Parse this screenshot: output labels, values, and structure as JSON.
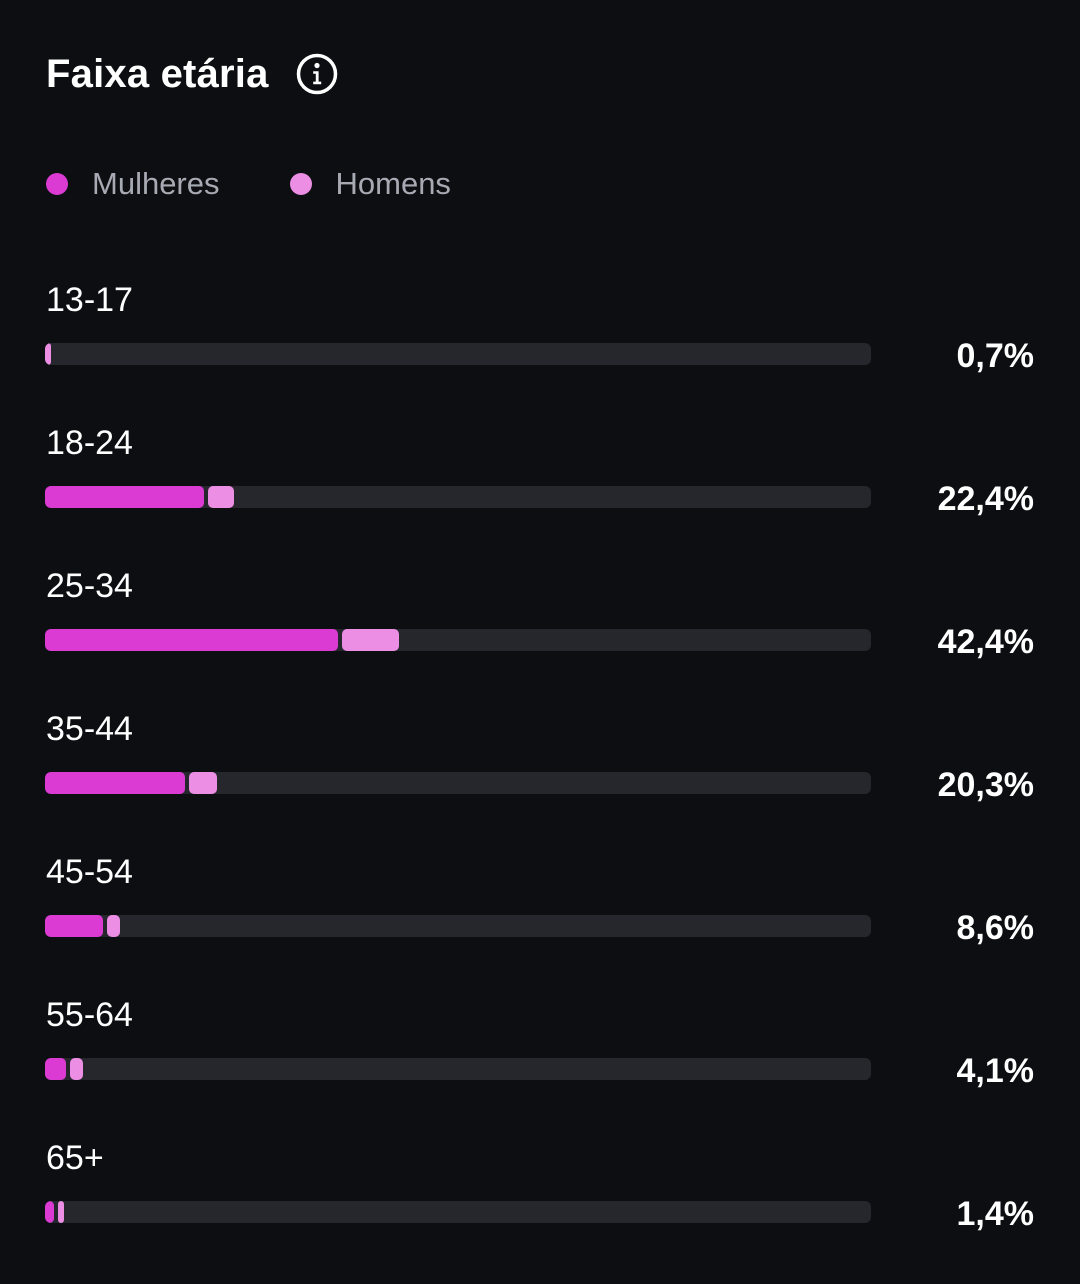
{
  "header": {
    "title": "Faixa etária",
    "info_icon": "info-circle-icon"
  },
  "colors": {
    "background": "#0c0e12",
    "track": "#25272d",
    "women": "#dc3bd3",
    "men": "#eb8ee4"
  },
  "chart_data": {
    "type": "bar",
    "stacked": true,
    "orientation": "horizontal",
    "title": "Faixa etária",
    "legend_position": "top-left",
    "xlim": [
      0,
      100
    ],
    "categories": [
      "13-17",
      "18-24",
      "25-34",
      "35-44",
      "45-54",
      "55-64",
      "65+"
    ],
    "totals": [
      "0,7%",
      "22,4%",
      "42,4%",
      "20,3%",
      "8,6%",
      "4,1%",
      "1,4%"
    ],
    "total_values": [
      0.7,
      22.4,
      42.4,
      20.3,
      8.6,
      4.1,
      1.4
    ],
    "series": [
      {
        "name": "Mulheres",
        "color": "#dc3bd3",
        "values": [
          0.0,
          19.2,
          35.5,
          17.0,
          7.0,
          2.6,
          1.1
        ]
      },
      {
        "name": "Homens",
        "color": "#eb8ee4",
        "values": [
          0.7,
          3.2,
          6.9,
          3.3,
          1.6,
          1.5,
          0.3
        ]
      }
    ]
  }
}
